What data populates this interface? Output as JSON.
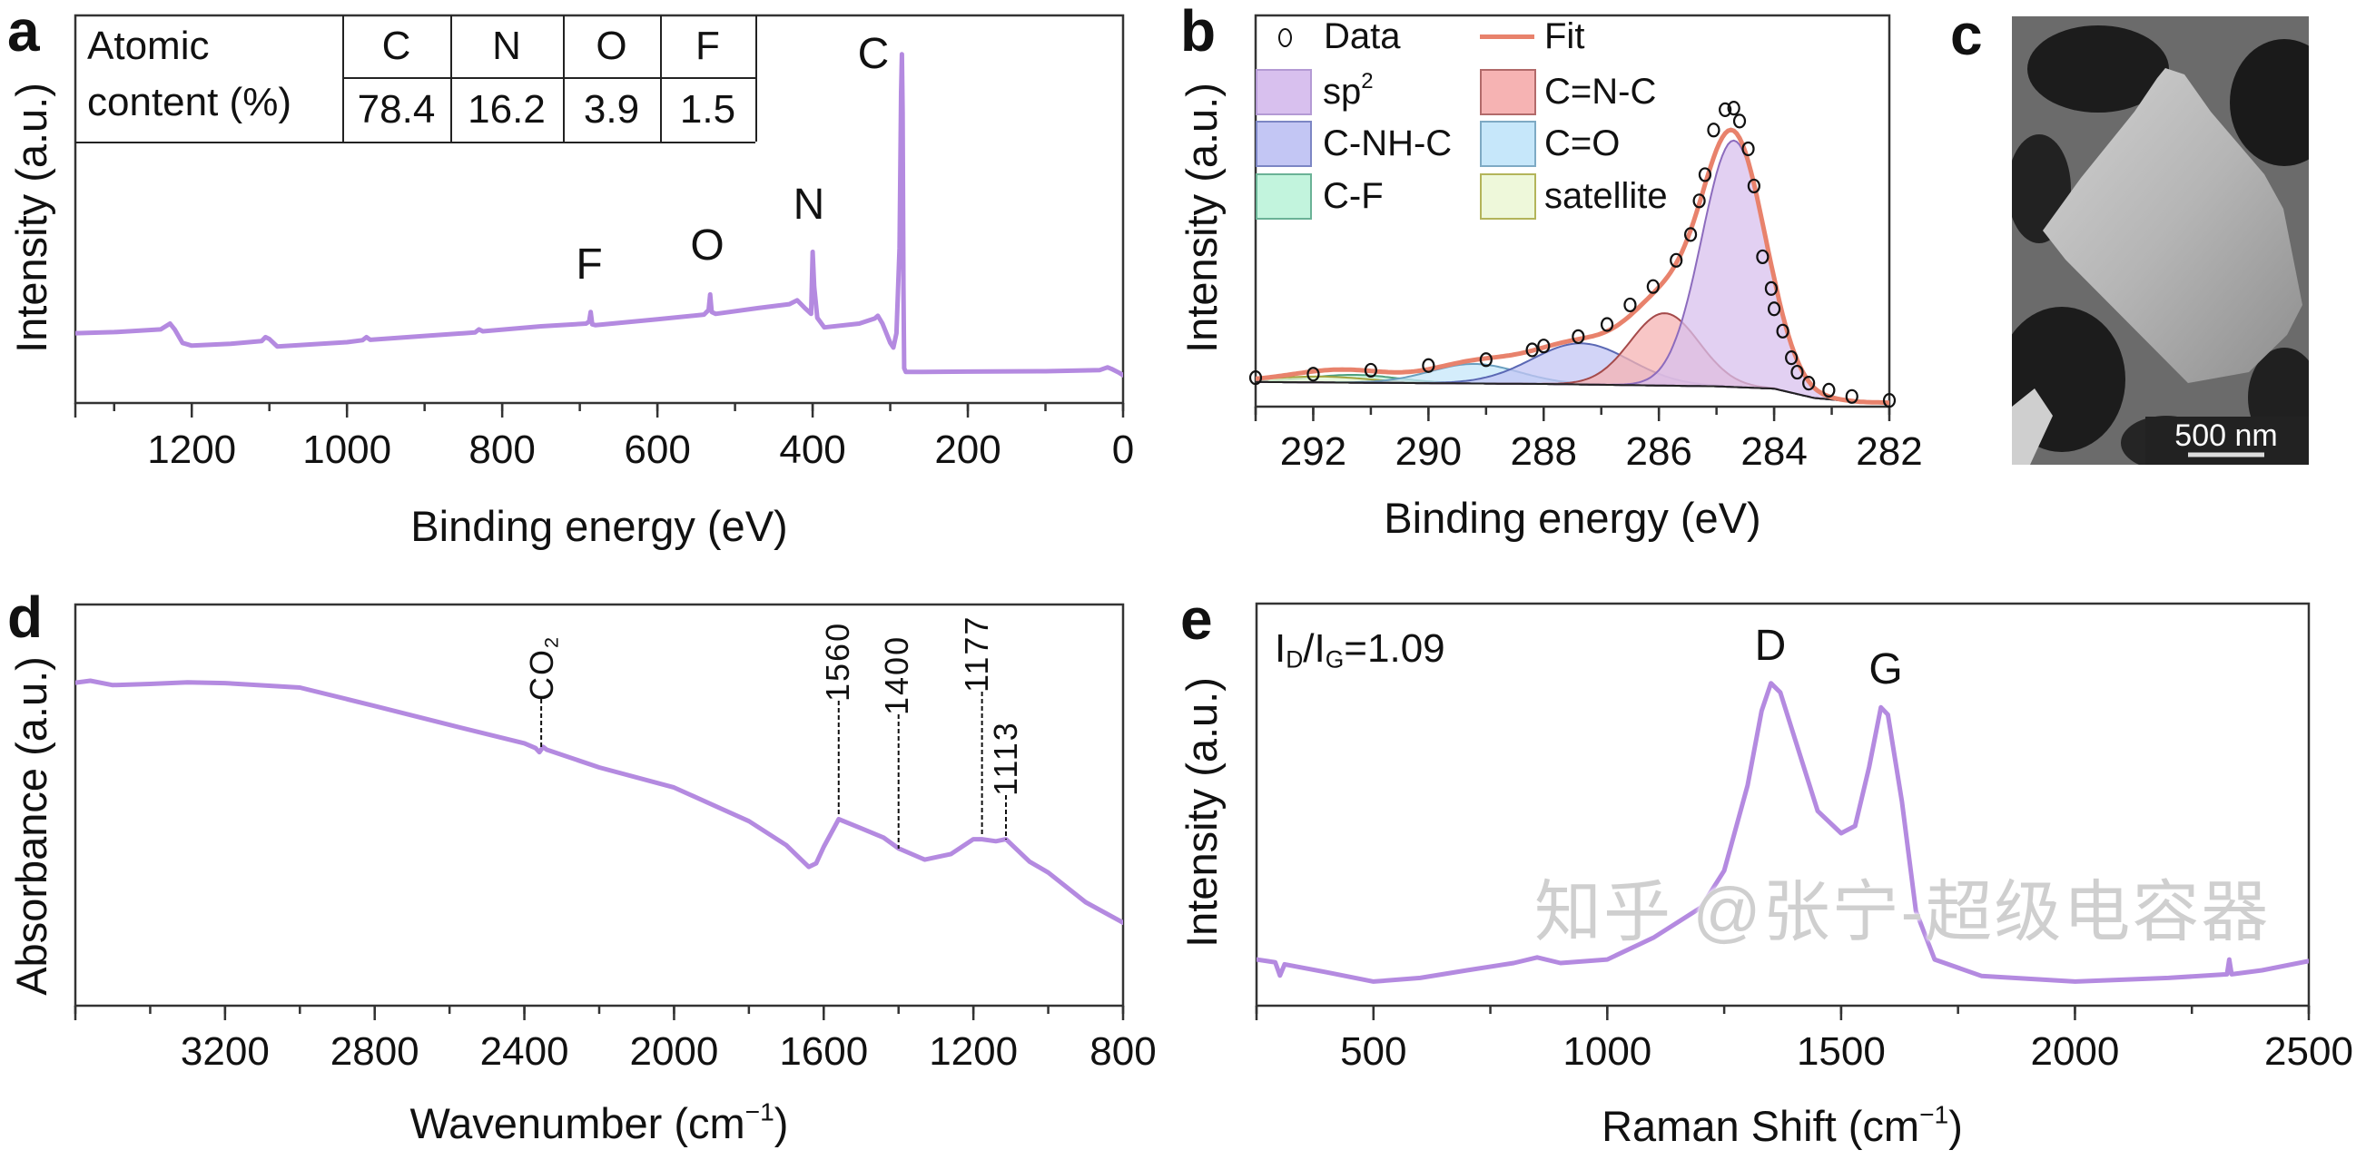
{
  "figure": {
    "panel_labels": {
      "a": "a",
      "b": "b",
      "c": "c",
      "d": "d",
      "e": "e"
    },
    "watermark": "知乎 @张宁-超级电容器",
    "line_color": "#b48ae0",
    "axis_color": "#333333"
  },
  "panel_a": {
    "table": {
      "row_header_1": "Atomic",
      "row_header_2": "content (%)",
      "elements": [
        "C",
        "N",
        "O",
        "F"
      ],
      "values": [
        "78.4",
        "16.2",
        "3.9",
        "1.5"
      ]
    }
  },
  "panel_b": {
    "legend": {
      "data_label": "Data",
      "fit_label": "Fit"
    }
  },
  "panel_c": {
    "type": "SEM image",
    "scale_bar": "500 nm"
  },
  "chart_data": [
    {
      "panel": "a",
      "type": "line",
      "title": "",
      "xlabel": {
        "main": "Binding energy (eV)"
      },
      "ylabel": "Intensity (a.u.)",
      "xlim": [
        1350,
        0
      ],
      "ylim": [
        0,
        100
      ],
      "x_reversed": true,
      "grid": false,
      "xticks": [
        1200,
        1000,
        800,
        600,
        400,
        200,
        0
      ],
      "xminor_step": 100,
      "peak_labels": [
        {
          "text": "C",
          "x": 285
        },
        {
          "text": "N",
          "x": 400
        },
        {
          "text": "O",
          "x": 531
        },
        {
          "text": "F",
          "x": 686
        }
      ],
      "series": [
        {
          "color": "#b48ae0",
          "x": [
            1350,
            1300,
            1240,
            1228,
            1222,
            1212,
            1200,
            1150,
            1110,
            1105,
            1100,
            1090,
            1000,
            980,
            975,
            970,
            900,
            835,
            830,
            825,
            750,
            692,
            688,
            686,
            684,
            680,
            600,
            540,
            534,
            532,
            530,
            525,
            470,
            430,
            420,
            410,
            402,
            400,
            398,
            394,
            385,
            340,
            320,
            316,
            310,
            300,
            296,
            292,
            288,
            286,
            285,
            284,
            283,
            282,
            280,
            275,
            200,
            100,
            30,
            20,
            15,
            5,
            0
          ],
          "y": [
            18,
            18.3,
            19,
            20.5,
            19,
            15.5,
            14.8,
            15.3,
            16,
            17,
            16.5,
            14.6,
            15.7,
            16.2,
            17,
            16.3,
            17.3,
            18.2,
            19,
            18.5,
            19.8,
            20.5,
            21,
            23.5,
            20.3,
            20.1,
            21.6,
            22.8,
            24,
            28,
            23.5,
            23,
            24.5,
            25.5,
            26.5,
            24.5,
            23,
            39,
            30,
            22,
            19.5,
            20.5,
            21.8,
            22.5,
            20.5,
            15.5,
            14.3,
            18,
            40,
            80,
            90,
            75,
            30,
            9,
            8,
            8,
            8.1,
            8.2,
            8.5,
            9.2,
            8.8,
            7.8,
            7.2
          ]
        }
      ]
    },
    {
      "panel": "b",
      "type": "scatter",
      "title": "",
      "xlabel": {
        "main": "Binding energy (eV)"
      },
      "ylabel": "Intensity (a.u.)",
      "xlim": [
        293,
        282
      ],
      "ylim": [
        0,
        100
      ],
      "x_reversed": true,
      "grid": false,
      "xticks": [
        292,
        290,
        288,
        286,
        284,
        282
      ],
      "xminor_step": 1,
      "legend_placement": "top-left",
      "data_points": {
        "name": "Data",
        "x": [
          293,
          292,
          291,
          290,
          289,
          288.2,
          288,
          287.4,
          286.9,
          286.5,
          286.1,
          285.7,
          285.45,
          285.3,
          285.2,
          285.05,
          284.85,
          284.7,
          284.6,
          284.45,
          284.35,
          284.2,
          284.05,
          284,
          283.85,
          283.7,
          283.6,
          283.4,
          283.05,
          282.65,
          282
        ],
        "y": [
          7.4,
          8.3,
          9.3,
          10.5,
          12,
          14.5,
          15.5,
          17.9,
          21,
          26,
          30.7,
          37.4,
          44,
          52.6,
          59.3,
          70.7,
          75.9,
          76.3,
          73,
          65.9,
          56.4,
          38.3,
          30.2,
          25,
          19.3,
          12.5,
          8.8,
          6,
          4.2,
          2.6,
          1.6
        ]
      },
      "fit": {
        "name": "Fit",
        "color": "#e8826c"
      },
      "baseline": {
        "x": [
          293,
          288,
          285,
          284,
          283.3,
          282.5,
          282
        ],
        "y": [
          6.3,
          5.8,
          5.2,
          4.6,
          2.2,
          1.2,
          1
        ]
      },
      "components": [
        {
          "label": "sp",
          "label_sup": "2",
          "center": 284.7,
          "amplitude": 63,
          "fwhm": 1.3,
          "fill": "#d8c0ee",
          "stroke": "#8c6bbd"
        },
        {
          "label": "C=N-C",
          "label_sup": "",
          "center": 285.9,
          "amplitude": 18.5,
          "fwhm": 1.4,
          "fill": "#f6b3b3",
          "stroke": "#a54a4a"
        },
        {
          "label": "C-NH-C",
          "label_sup": "",
          "center": 287.35,
          "amplitude": 10.5,
          "fwhm": 2.0,
          "fill": "#c3c6f4",
          "stroke": "#5a68b4"
        },
        {
          "label": "C=O",
          "label_sup": "",
          "center": 289.2,
          "amplitude": 5,
          "fwhm": 1.8,
          "fill": "#c6e7fa",
          "stroke": "#6a9fbf"
        },
        {
          "label": "C-F",
          "label_sup": "",
          "center": 291.3,
          "amplitude": 2,
          "fwhm": 1.8,
          "fill": "#c2f4dd",
          "stroke": "#4fa07e"
        },
        {
          "label": "satellite",
          "label_sup": "",
          "center": 291.9,
          "amplitude": 1.5,
          "fwhm": 2.0,
          "fill": "#eef8da",
          "stroke": "#a3a43e"
        }
      ]
    },
    {
      "panel": "d",
      "type": "line",
      "title": "",
      "xlabel": {
        "main": "Wavenumber (cm",
        "sup": "−1",
        "end": ")"
      },
      "ylabel": "Absorbance (a.u.)",
      "xlim": [
        3600,
        800
      ],
      "ylim": [
        0,
        100
      ],
      "x_reversed": true,
      "grid": false,
      "xticks": [
        3200,
        2800,
        2400,
        2000,
        1600,
        1200,
        800
      ],
      "xminor_step": 200,
      "annotations": [
        {
          "text": "CO",
          "sub": "2",
          "x": 2355
        },
        {
          "text": "1560",
          "sub": "",
          "x": 1560
        },
        {
          "text": "1400",
          "sub": "",
          "x": 1400
        },
        {
          "text": "1177",
          "sub": "",
          "x": 1177
        },
        {
          "text": "1113",
          "sub": "",
          "x": 1113
        }
      ],
      "series": [
        {
          "color": "#b48ae0",
          "x": [
            3600,
            3560,
            3500,
            3400,
            3300,
            3200,
            3000,
            2800,
            2600,
            2400,
            2370,
            2360,
            2350,
            2340,
            2200,
            2000,
            1800,
            1700,
            1640,
            1620,
            1600,
            1560,
            1500,
            1440,
            1400,
            1330,
            1260,
            1200,
            1177,
            1140,
            1113,
            1050,
            1000,
            900,
            800
          ],
          "y": [
            80.5,
            81,
            79.9,
            80.2,
            80.6,
            80.4,
            79.3,
            74.7,
            70,
            65.4,
            64.2,
            63.2,
            64.5,
            63.8,
            59.4,
            54.4,
            46,
            40,
            34.6,
            35.5,
            39.6,
            46.5,
            44.2,
            41.9,
            39.2,
            36.4,
            37.8,
            41.5,
            41.5,
            41,
            41.5,
            35.9,
            33.2,
            25.8,
            20.7
          ]
        }
      ]
    },
    {
      "panel": "e",
      "type": "line",
      "title": "",
      "xlabel": {
        "main": "Raman Shift (cm",
        "sup": "−1",
        "end": ")"
      },
      "ylabel": "Intensity (a.u.)",
      "xlim": [
        250,
        2500
      ],
      "ylim": [
        0,
        100
      ],
      "x_reversed": false,
      "grid": false,
      "xticks": [
        500,
        1000,
        1500,
        2000,
        2500
      ],
      "xminor_step": 250,
      "ratio_annotation": {
        "I1": "I",
        "sub1": "D",
        "slash": "/",
        "I2": "I",
        "sub2": "G",
        "value": "=1.09"
      },
      "peak_labels": [
        {
          "text": "D",
          "x": 1350
        },
        {
          "text": "G",
          "x": 1585
        }
      ],
      "series": [
        {
          "color": "#b48ae0",
          "x": [
            250,
            290,
            300,
            310,
            400,
            500,
            600,
            700,
            800,
            850,
            900,
            1000,
            1100,
            1200,
            1250,
            1300,
            1330,
            1350,
            1370,
            1400,
            1450,
            1500,
            1530,
            1560,
            1585,
            1600,
            1630,
            1660,
            1700,
            1800,
            2000,
            2200,
            2325,
            2330,
            2335,
            2400,
            2500
          ],
          "y": [
            11.5,
            10.8,
            7.5,
            10.3,
            8.3,
            6,
            6.9,
            8.8,
            10.6,
            12,
            10.6,
            11.5,
            17,
            24.4,
            33.6,
            54.8,
            73.3,
            80.2,
            77.9,
            66.8,
            48.4,
            42.9,
            44.7,
            59.4,
            74.2,
            72.4,
            50.7,
            23.5,
            11.5,
            7.4,
            6,
            6.9,
            7.8,
            11.5,
            7.8,
            8.8,
            11.1
          ]
        }
      ]
    }
  ]
}
